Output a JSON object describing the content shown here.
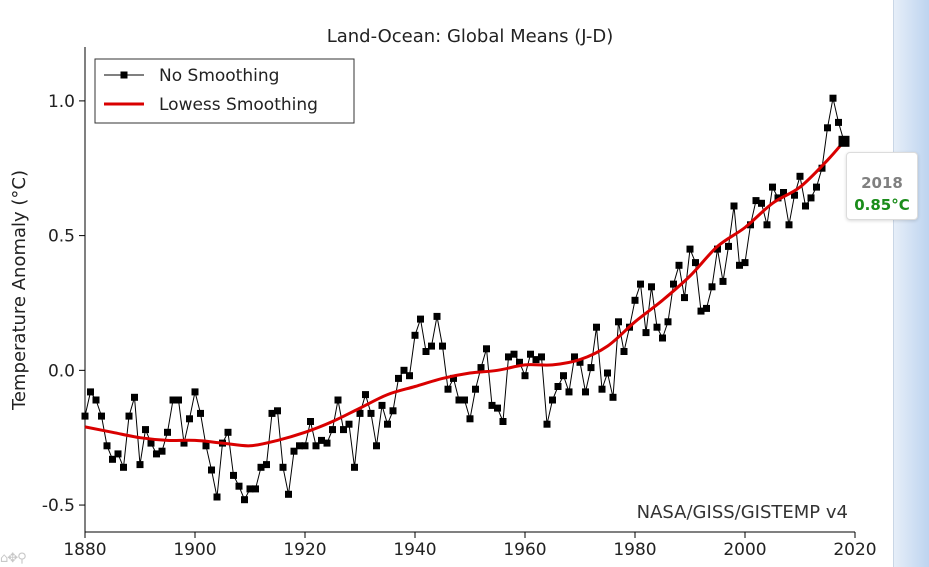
{
  "chart_data": {
    "type": "line",
    "title": "Land-Ocean: Global Means (J-D)",
    "ylabel": "Temperature Anomaly (°C)",
    "xlabel": "",
    "xlim": [
      1880,
      2020
    ],
    "ylim": [
      -0.6,
      1.2
    ],
    "xticks": [
      1880,
      1900,
      1920,
      1940,
      1960,
      1980,
      2000,
      2020
    ],
    "yticks": [
      -0.5,
      0.0,
      0.5,
      1.0
    ],
    "ytick_labels": [
      "-0.5",
      "0.0",
      "0.5",
      "1.0"
    ],
    "legend_position": "top-left",
    "annotation": "NASA/GISS/GISTEMP v4",
    "series": [
      {
        "name": "No Smoothing",
        "color": "#000000",
        "x": [
          1880,
          1881,
          1882,
          1883,
          1884,
          1885,
          1886,
          1887,
          1888,
          1889,
          1890,
          1891,
          1892,
          1893,
          1894,
          1895,
          1896,
          1897,
          1898,
          1899,
          1900,
          1901,
          1902,
          1903,
          1904,
          1905,
          1906,
          1907,
          1908,
          1909,
          1910,
          1911,
          1912,
          1913,
          1914,
          1915,
          1916,
          1917,
          1918,
          1919,
          1920,
          1921,
          1922,
          1923,
          1924,
          1925,
          1926,
          1927,
          1928,
          1929,
          1930,
          1931,
          1932,
          1933,
          1934,
          1935,
          1936,
          1937,
          1938,
          1939,
          1940,
          1941,
          1942,
          1943,
          1944,
          1945,
          1946,
          1947,
          1948,
          1949,
          1950,
          1951,
          1952,
          1953,
          1954,
          1955,
          1956,
          1957,
          1958,
          1959,
          1960,
          1961,
          1962,
          1963,
          1964,
          1965,
          1966,
          1967,
          1968,
          1969,
          1970,
          1971,
          1972,
          1973,
          1974,
          1975,
          1976,
          1977,
          1978,
          1979,
          1980,
          1981,
          1982,
          1983,
          1984,
          1985,
          1986,
          1987,
          1988,
          1989,
          1990,
          1991,
          1992,
          1993,
          1994,
          1995,
          1996,
          1997,
          1998,
          1999,
          2000,
          2001,
          2002,
          2003,
          2004,
          2005,
          2006,
          2007,
          2008,
          2009,
          2010,
          2011,
          2012,
          2013,
          2014,
          2015,
          2016,
          2017,
          2018
        ],
        "values": [
          -0.17,
          -0.08,
          -0.11,
          -0.17,
          -0.28,
          -0.33,
          -0.31,
          -0.36,
          -0.17,
          -0.1,
          -0.35,
          -0.22,
          -0.27,
          -0.31,
          -0.3,
          -0.23,
          -0.11,
          -0.11,
          -0.27,
          -0.18,
          -0.08,
          -0.16,
          -0.28,
          -0.37,
          -0.47,
          -0.27,
          -0.23,
          -0.39,
          -0.43,
          -0.48,
          -0.44,
          -0.44,
          -0.36,
          -0.35,
          -0.16,
          -0.15,
          -0.36,
          -0.46,
          -0.3,
          -0.28,
          -0.28,
          -0.19,
          -0.28,
          -0.26,
          -0.27,
          -0.22,
          -0.11,
          -0.22,
          -0.2,
          -0.36,
          -0.16,
          -0.09,
          -0.16,
          -0.28,
          -0.13,
          -0.2,
          -0.15,
          -0.03,
          0.0,
          -0.02,
          0.13,
          0.19,
          0.07,
          0.09,
          0.2,
          0.09,
          -0.07,
          -0.03,
          -0.11,
          -0.11,
          -0.18,
          -0.07,
          0.01,
          0.08,
          -0.13,
          -0.14,
          -0.19,
          0.05,
          0.06,
          0.03,
          -0.02,
          0.06,
          0.04,
          0.05,
          -0.2,
          -0.11,
          -0.06,
          -0.02,
          -0.08,
          0.05,
          0.03,
          -0.08,
          0.01,
          0.16,
          -0.07,
          -0.01,
          -0.1,
          0.18,
          0.07,
          0.16,
          0.26,
          0.32,
          0.14,
          0.31,
          0.16,
          0.12,
          0.18,
          0.32,
          0.39,
          0.27,
          0.45,
          0.4,
          0.22,
          0.23,
          0.31,
          0.45,
          0.33,
          0.46,
          0.61,
          0.39,
          0.4,
          0.54,
          0.63,
          0.62,
          0.54,
          0.68,
          0.64,
          0.66,
          0.54,
          0.65,
          0.72,
          0.61,
          0.64,
          0.68,
          0.75,
          0.9,
          1.01,
          0.92,
          0.85
        ]
      },
      {
        "name": "Lowess Smoothing",
        "color": "#d90000",
        "x": [
          1880,
          1885,
          1890,
          1895,
          1900,
          1905,
          1910,
          1915,
          1920,
          1925,
          1930,
          1935,
          1940,
          1945,
          1950,
          1955,
          1960,
          1965,
          1970,
          1975,
          1980,
          1985,
          1990,
          1995,
          2000,
          2005,
          2010,
          2015,
          2018
        ],
        "values": [
          -0.21,
          -0.23,
          -0.25,
          -0.26,
          -0.26,
          -0.27,
          -0.28,
          -0.26,
          -0.23,
          -0.19,
          -0.14,
          -0.09,
          -0.06,
          -0.03,
          -0.01,
          0.0,
          0.02,
          0.02,
          0.04,
          0.09,
          0.18,
          0.26,
          0.35,
          0.46,
          0.53,
          0.62,
          0.68,
          0.78,
          0.85
        ]
      }
    ],
    "highlight": {
      "year": "2018",
      "value": "0.85°C"
    }
  }
}
